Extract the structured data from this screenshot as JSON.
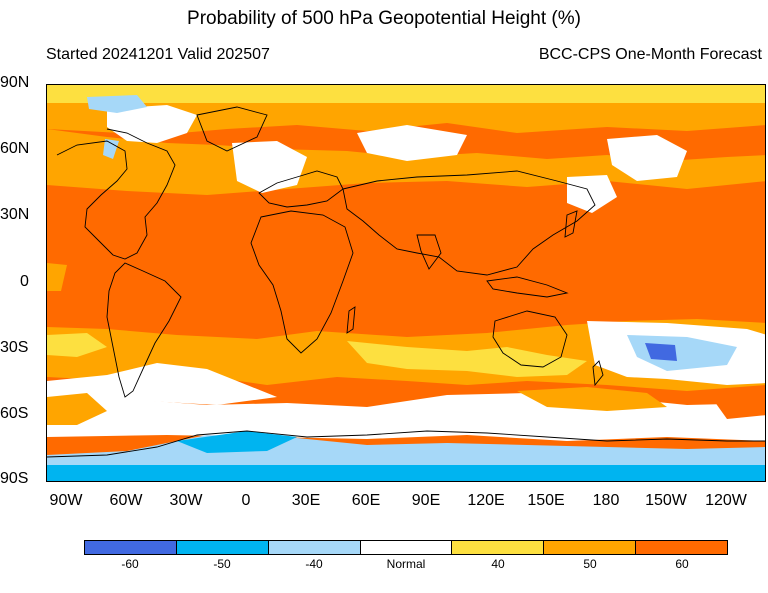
{
  "header": {
    "title": "Probability of 500 hPa Geopotential Height (%)",
    "started": "Started 20241201  Valid 202507",
    "source": "BCC-CPS One-Month Forecast"
  },
  "axes": {
    "lat_labels": [
      "90N",
      "60N",
      "30N",
      "0",
      "30S",
      "60S",
      "90S"
    ],
    "lon_labels": [
      "90W",
      "60W",
      "30W",
      "0",
      "30E",
      "60E",
      "90E",
      "120E",
      "150E",
      "180",
      "150W",
      "120W"
    ]
  },
  "legend": {
    "labels": [
      "-60",
      "-50",
      "-40",
      "Normal",
      "40",
      "50",
      "60"
    ],
    "colors": [
      "#4169e1",
      "#00b4f0",
      "#a6d8f8",
      "#ffffff",
      "#fde040",
      "#ffa500",
      "#ff6a00"
    ]
  }
}
